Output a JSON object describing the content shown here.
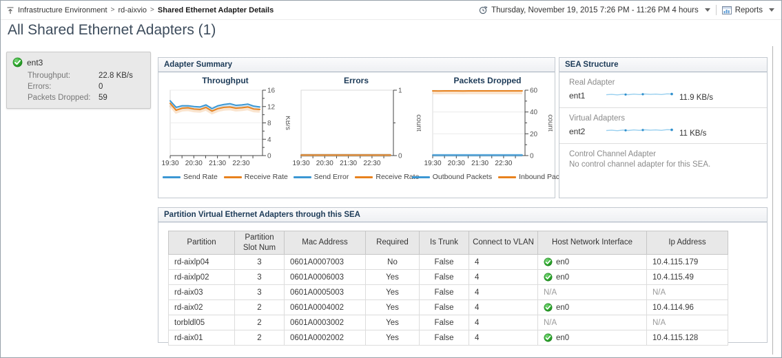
{
  "header": {
    "breadcrumb": [
      "Infrastructure Environment",
      "rd-aixvio",
      "Shared Ethernet Adapter Details"
    ],
    "time_range": "Thursday, November 19, 2015 7:26 PM - 11:26 PM 4 hours",
    "reports": "Reports",
    "title": "All Shared Ethernet Adapters (1)"
  },
  "adapter_card": {
    "name": "ent3",
    "status_icon": "green-check",
    "metrics": [
      {
        "label": "Throughput:",
        "value": "22.8 KB/s"
      },
      {
        "label": "Errors:",
        "value": "0"
      },
      {
        "label": "Packets Dropped:",
        "value": "59"
      }
    ]
  },
  "adapter_summary": {
    "title": "Adapter Summary"
  },
  "chart_data": [
    {
      "type": "line",
      "title": "Throughput",
      "ylabel": "KB/s",
      "ylim": [
        0,
        16
      ],
      "yticks": [
        0,
        4,
        8,
        12,
        16
      ],
      "x_tick_labels": [
        "19:30",
        "20:30",
        "21:30",
        "22:30"
      ],
      "grid": true,
      "legend_position": "bottom",
      "series": [
        {
          "name": "Send Rate",
          "color": "#3b97d3",
          "values": [
            13.4,
            11.8,
            12.2,
            12.2,
            12.0,
            11.9,
            12.4,
            11.5,
            12.2,
            12.5,
            12.7,
            12.3,
            12.4,
            12.6,
            12.1,
            11.9
          ]
        },
        {
          "name": "Receive Rate",
          "color": "#e8821e",
          "values": [
            12.8,
            11.1,
            11.6,
            11.7,
            11.4,
            11.3,
            11.8,
            10.9,
            11.5,
            11.8,
            11.9,
            11.6,
            11.7,
            11.9,
            11.4,
            11.3
          ]
        }
      ]
    },
    {
      "type": "line",
      "title": "Errors",
      "ylabel": "count",
      "ylim": [
        0,
        1
      ],
      "yticks": [
        0,
        1
      ],
      "x_tick_labels": [
        "19:30",
        "20:30",
        "21:30",
        "22:30"
      ],
      "grid": false,
      "legend_position": "bottom",
      "series": [
        {
          "name": "Send Error",
          "color": "#3b97d3",
          "values": [
            0,
            0,
            0,
            0,
            0,
            0,
            0,
            0,
            0,
            0,
            0,
            0,
            0,
            0,
            0,
            0
          ]
        },
        {
          "name": "Receive Rate",
          "color": "#e8821e",
          "values": [
            0,
            0,
            0,
            0,
            0,
            0,
            0,
            0,
            0,
            0,
            0,
            0,
            0,
            0,
            0,
            0
          ]
        }
      ]
    },
    {
      "type": "line",
      "title": "Packets Dropped",
      "ylabel": "count",
      "ylim": [
        0,
        60
      ],
      "yticks": [
        0,
        20,
        40,
        60
      ],
      "x_tick_labels": [
        "19:30",
        "20:30",
        "21:30",
        "22:30"
      ],
      "grid": true,
      "legend_position": "bottom",
      "series": [
        {
          "name": "Outbound Packets",
          "color": "#3b97d3",
          "values": [
            0.5,
            0.5,
            0.5,
            0.5,
            0.5,
            0.5,
            0.5,
            0.5,
            0.5,
            0.5,
            0.5,
            0.5,
            0.5,
            0.5,
            0.5,
            0.5
          ]
        },
        {
          "name": "Inbound Pack",
          "color": "#e8821e",
          "values": [
            59.5,
            59.3,
            59.5,
            59.4,
            59.5,
            59.3,
            59.5,
            59.5,
            59.4,
            59.5,
            59.5,
            59.4,
            59.5,
            59.5,
            59.4,
            59.5
          ]
        }
      ]
    }
  ],
  "sea_structure": {
    "title": "SEA Structure",
    "real_adapter": {
      "label": "Real Adapter",
      "name": "ent1",
      "value": "11.9 KB/s"
    },
    "virtual_adapters": {
      "label": "Virtual Adapters",
      "name": "ent2",
      "value": "11 KB/s"
    },
    "control_channel": {
      "label": "Control Channel Adapter",
      "message": "No control channel adapter for this SEA."
    }
  },
  "partition_table": {
    "title": "Partition Virtual Ethernet Adapters through this SEA",
    "columns": [
      "Partition",
      "Partition Slot Num",
      "Mac Address",
      "Required",
      "Is Trunk",
      "Connect to VLAN",
      "Host Network Interface",
      "Ip Address"
    ],
    "rows": [
      {
        "partition": "rd-aixlp04",
        "slot": "3",
        "mac": "0601A0007003",
        "required": "No",
        "is_trunk": "False",
        "vlan": "4",
        "host": "en0",
        "host_status": "ok",
        "ip": "10.4.115.179"
      },
      {
        "partition": "rd-aixlp02",
        "slot": "3",
        "mac": "0601A0006003",
        "required": "Yes",
        "is_trunk": "False",
        "vlan": "4",
        "host": "en0",
        "host_status": "ok",
        "ip": "10.4.115.49"
      },
      {
        "partition": "rd-aix03",
        "slot": "3",
        "mac": "0601A0005003",
        "required": "Yes",
        "is_trunk": "False",
        "vlan": "4",
        "host": "N/A",
        "host_status": "none",
        "ip": "N/A"
      },
      {
        "partition": "rd-aix02",
        "slot": "2",
        "mac": "0601A0004002",
        "required": "Yes",
        "is_trunk": "False",
        "vlan": "4",
        "host": "en0",
        "host_status": "ok",
        "ip": "10.4.114.96"
      },
      {
        "partition": "torbldl05",
        "slot": "2",
        "mac": "0601A0003002",
        "required": "Yes",
        "is_trunk": "False",
        "vlan": "4",
        "host": "N/A",
        "host_status": "none",
        "ip": "N/A"
      },
      {
        "partition": "rd-aix01",
        "slot": "2",
        "mac": "0601A0002002",
        "required": "Yes",
        "is_trunk": "False",
        "vlan": "4",
        "host": "en0",
        "host_status": "ok",
        "ip": "10.4.115.128"
      }
    ]
  },
  "colors": {
    "series_blue": "#3b97d3",
    "series_orange": "#e8821e",
    "status_green": "#2fae2f",
    "sparkline_blue": "#8ccaed"
  }
}
